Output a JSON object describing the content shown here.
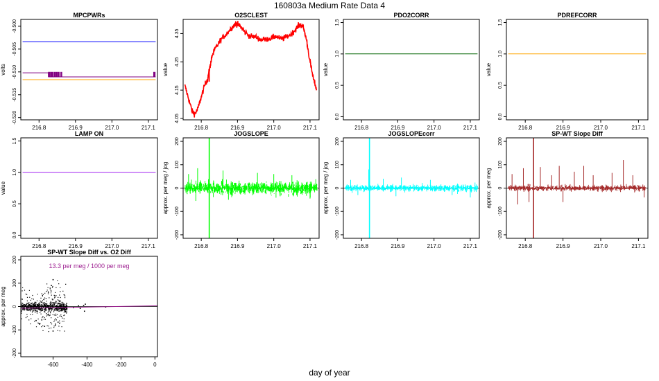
{
  "page": {
    "title": "160803a   Medium Rate Data 4",
    "xlabel": "day of year"
  },
  "colors": {
    "axis": "#000000",
    "blue": "#0000ff",
    "purple": "#800080",
    "orange": "#ffa500",
    "red": "#ff0000",
    "darkgreen": "#006400",
    "violet": "#a020f0",
    "green": "#00ff00",
    "cyan": "#00ffff",
    "brown": "#a52a2a",
    "magenta": "#9b1b8e"
  },
  "chart_data": [
    {
      "id": "mpcpwrs",
      "type": "line",
      "title": "MPCPWRs",
      "ylabel": "volts",
      "xlim": [
        216.75,
        217.125
      ],
      "ylim": [
        -0.5205,
        -0.4985
      ],
      "xticks": [
        216.8,
        216.9,
        217.0,
        217.1
      ],
      "xticklabels": [
        "216.8",
        "216.9",
        "217.0",
        "217.1"
      ],
      "yticks": [
        -0.52,
        -0.515,
        -0.51,
        -0.505,
        -0.5
      ],
      "yticklabels": [
        "-0.520",
        "-0.515",
        "-0.510",
        "-0.505",
        "-0.500"
      ],
      "series": [
        {
          "color": "#0000ff",
          "x": [
            216.755,
            217.12
          ],
          "y": [
            -0.5034,
            -0.5034
          ]
        },
        {
          "color": "#800080",
          "x": [
            216.755,
            216.825,
            216.826,
            217.12
          ],
          "y": [
            -0.5102,
            -0.5102,
            -0.5111,
            -0.5111
          ]
        },
        {
          "color": "#ffa500",
          "x": [
            216.755,
            217.12
          ],
          "y": [
            -0.5117,
            -0.5117
          ]
        }
      ],
      "spikes": {
        "color": "#800080",
        "x": [
          216.826,
          216.829,
          216.832,
          216.835,
          216.838,
          216.842,
          216.845,
          216.848,
          216.851,
          216.854,
          216.858,
          216.862,
          217.115,
          217.118
        ],
        "y0": -0.5111,
        "y1": -0.51
      }
    },
    {
      "id": "o2sclest",
      "type": "line",
      "title": "O2SCLEST",
      "ylabel": "value",
      "xlim": [
        216.75,
        217.125
      ],
      "ylim": [
        4.045,
        4.4
      ],
      "xticks": [
        216.8,
        216.9,
        217.0,
        217.1
      ],
      "xticklabels": [
        "216.8",
        "216.9",
        "217.0",
        "217.1"
      ],
      "yticks": [
        4.05,
        4.15,
        4.25,
        4.35
      ],
      "yticklabels": [
        "4.05",
        "4.15",
        "4.25",
        "4.35"
      ],
      "series": [
        {
          "color": "#ff0000",
          "noise": 0.005,
          "x": [
            216.755,
            216.765,
            216.775,
            216.782,
            216.79,
            216.8,
            216.81,
            216.818,
            216.822,
            216.826,
            216.83,
            216.84,
            216.855,
            216.87,
            216.885,
            216.895,
            216.9,
            216.91,
            216.92,
            216.935,
            216.95,
            216.965,
            216.98,
            216.995,
            217.005,
            217.02,
            217.035,
            217.05,
            217.06,
            217.07,
            217.08,
            217.09,
            217.1,
            217.11,
            217.118
          ],
          "y": [
            4.165,
            4.12,
            4.075,
            4.065,
            4.082,
            4.125,
            4.17,
            4.19,
            4.22,
            4.245,
            4.272,
            4.3,
            4.33,
            4.35,
            4.372,
            4.385,
            4.383,
            4.372,
            4.355,
            4.34,
            4.338,
            4.328,
            4.33,
            4.335,
            4.34,
            4.33,
            4.338,
            4.35,
            4.365,
            4.38,
            4.378,
            4.33,
            4.25,
            4.185,
            4.155
          ]
        }
      ],
      "spikes": {
        "color": "#ff0000",
        "x": [
          216.822
        ],
        "y0": 4.18,
        "y1": 4.225
      }
    },
    {
      "id": "pdo2corr",
      "type": "line",
      "title": "PDO2CORR",
      "ylabel": "value",
      "xlim": [
        216.75,
        217.125
      ],
      "ylim": [
        -0.05,
        1.55
      ],
      "xticks": [
        216.8,
        216.9,
        217.0,
        217.1
      ],
      "xticklabels": [
        "216.8",
        "216.9",
        "217.0",
        "217.1"
      ],
      "yticks": [
        0,
        0.5,
        1.0,
        1.5
      ],
      "yticklabels": [
        "0.0",
        "0.5",
        "1.0",
        "1.5"
      ],
      "series": [
        {
          "color": "#006400",
          "x": [
            216.755,
            217.12
          ],
          "y": [
            1,
            1
          ]
        }
      ]
    },
    {
      "id": "pdrefcorr",
      "type": "line",
      "title": "PDREFCORR",
      "ylabel": "value",
      "xlim": [
        216.75,
        217.125
      ],
      "ylim": [
        -0.05,
        1.55
      ],
      "xticks": [
        216.8,
        216.9,
        217.0,
        217.1
      ],
      "xticklabels": [
        "216.8",
        "216.9",
        "217.0",
        "217.1"
      ],
      "yticks": [
        0,
        0.5,
        1.0,
        1.5
      ],
      "yticklabels": [
        "0.0",
        "0.5",
        "1.0",
        "1.5"
      ],
      "series": [
        {
          "color": "#ffa500",
          "x": [
            216.755,
            217.12
          ],
          "y": [
            1,
            1
          ]
        }
      ]
    },
    {
      "id": "lampon",
      "type": "line",
      "title": "LAMP ON",
      "ylabel": "value",
      "xlim": [
        216.75,
        217.125
      ],
      "ylim": [
        -0.05,
        1.55
      ],
      "xticks": [
        216.8,
        216.9,
        217.0,
        217.1
      ],
      "xticklabels": [
        "216.8",
        "216.9",
        "217.0",
        "217.1"
      ],
      "yticks": [
        0,
        0.5,
        1.0,
        1.5
      ],
      "yticklabels": [
        "0.0",
        "0.5",
        "1.0",
        "1.5"
      ],
      "series": [
        {
          "color": "#a020f0",
          "x": [
            216.755,
            217.12
          ],
          "y": [
            1,
            1
          ]
        }
      ]
    },
    {
      "id": "jogslope",
      "type": "line",
      "title": "JOGSLOPE",
      "ylabel": "approx. per meg / jog",
      "xlim": [
        216.75,
        217.125
      ],
      "ylim": [
        -215,
        215
      ],
      "xticks": [
        216.8,
        216.9,
        217.0,
        217.1
      ],
      "xticklabels": [
        "216.8",
        "216.9",
        "217.0",
        "217.1"
      ],
      "yticks": [
        -200,
        -100,
        0,
        100,
        200
      ],
      "yticklabels": [
        "-200",
        "-100",
        "0",
        "100",
        "200"
      ],
      "zeroline": true,
      "noise_series": {
        "color": "#00ff00",
        "x0": 216.755,
        "x1": 217.12,
        "amp": 28,
        "bursts": 30,
        "outliers": [
          [
            216.765,
            60
          ],
          [
            216.785,
            -55
          ],
          [
            216.79,
            85
          ],
          [
            216.86,
            75
          ],
          [
            216.875,
            -50
          ],
          [
            216.955,
            65
          ],
          [
            217.0,
            60
          ],
          [
            217.05,
            55
          ],
          [
            217.1,
            -45
          ]
        ]
      },
      "spikes": {
        "color": "#00ff00",
        "x": [
          216.822
        ],
        "y0": -215,
        "y1": 215
      }
    },
    {
      "id": "jogslopecorr",
      "type": "line",
      "title": "JOGSLOPEcorr",
      "ylabel": "approx. per meg / jog",
      "xlim": [
        216.75,
        217.125
      ],
      "ylim": [
        -215,
        215
      ],
      "xticks": [
        216.8,
        216.9,
        217.0,
        217.1
      ],
      "xticklabels": [
        "216.8",
        "216.9",
        "217.0",
        "217.1"
      ],
      "yticks": [
        -200,
        -100,
        0,
        100,
        200
      ],
      "yticklabels": [
        "-200",
        "-100",
        "0",
        "100",
        "200"
      ],
      "zeroline": true,
      "noise_series": {
        "color": "#00ffff",
        "x0": 216.755,
        "x1": 217.12,
        "amp": 14,
        "bursts": 30,
        "outliers": [
          [
            216.77,
            35
          ],
          [
            216.79,
            -30
          ],
          [
            216.82,
            80
          ],
          [
            216.86,
            40
          ],
          [
            216.895,
            -35
          ],
          [
            216.91,
            45
          ],
          [
            216.99,
            35
          ],
          [
            217.05,
            -30
          ],
          [
            217.1,
            -40
          ]
        ]
      },
      "spikes": {
        "color": "#00ffff",
        "x": [
          216.822
        ],
        "y0": -215,
        "y1": 215
      }
    },
    {
      "id": "spwtslope",
      "type": "line",
      "title": "SP-WT Slope Diff",
      "ylabel": "approx. per meg",
      "xlim": [
        216.75,
        217.125
      ],
      "ylim": [
        -215,
        215
      ],
      "xticks": [
        216.8,
        216.9,
        217.0,
        217.1
      ],
      "xticklabels": [
        "216.8",
        "216.9",
        "217.0",
        "217.1"
      ],
      "yticks": [
        -200,
        -100,
        0,
        100,
        200
      ],
      "yticklabels": [
        "-200",
        "-100",
        "0",
        "100",
        "200"
      ],
      "zeroline": true,
      "noise_series": {
        "color": "#a52a2a",
        "x0": 216.755,
        "x1": 217.12,
        "amp": 12,
        "bursts": 30,
        "outliers": [
          [
            216.765,
            60
          ],
          [
            216.78,
            -70
          ],
          [
            216.795,
            85
          ],
          [
            216.81,
            -60
          ],
          [
            216.84,
            90
          ],
          [
            216.87,
            55
          ],
          [
            216.89,
            95
          ],
          [
            216.9,
            -60
          ],
          [
            216.93,
            70
          ],
          [
            216.955,
            95
          ],
          [
            216.98,
            55
          ],
          [
            217.03,
            65
          ],
          [
            217.06,
            120
          ],
          [
            217.085,
            55
          ],
          [
            217.115,
            -40
          ]
        ]
      },
      "spikes": {
        "color": "#a52a2a",
        "x": [
          216.822
        ],
        "y0": -215,
        "y1": 215
      }
    },
    {
      "id": "scatter",
      "type": "scatter",
      "title": "SP-WT Slope Diff vs. O2 Diff",
      "annotation": "13.3 per meg / 1000 per meg",
      "ylabel": "approx. per meg",
      "xlim": [
        -790,
        15
      ],
      "ylim": [
        -215,
        215
      ],
      "xticks": [
        -600,
        -400,
        -200,
        0
      ],
      "xticklabels": [
        "-600",
        "-400",
        "-200",
        "0"
      ],
      "yticks": [
        -200,
        -100,
        0,
        100,
        200
      ],
      "yticklabels": [
        "-200",
        "-100",
        "0",
        "100",
        "200"
      ],
      "zeroline": true,
      "fit": {
        "color": "#9b1b8e",
        "slope": 0.0133,
        "intercept": 3
      },
      "cloud": {
        "color": "#000000",
        "x0": -790,
        "x1": -520,
        "core_amp": 8,
        "outer_amp": 45,
        "n": 900
      },
      "points": [
        [
          -480,
          -5
        ],
        [
          -450,
          3
        ],
        [
          -440,
          -8
        ],
        [
          -420,
          5
        ],
        [
          -415,
          -20
        ],
        [
          -410,
          10
        ],
        [
          -290,
          -2
        ],
        [
          -600,
          115
        ],
        [
          -610,
          90
        ],
        [
          -600,
          -105
        ],
        [
          -650,
          -85
        ],
        [
          -700,
          -60
        ]
      ]
    }
  ]
}
